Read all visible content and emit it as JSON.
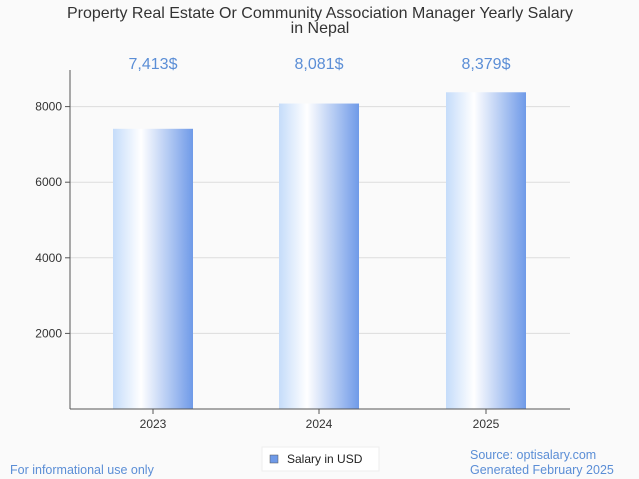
{
  "chart_data": {
    "type": "bar",
    "title_lines": [
      "Property Real Estate Or Community Association Manager Yearly Salary",
      "in Nepal"
    ],
    "categories": [
      "2023",
      "2024",
      "2025"
    ],
    "values": [
      7413,
      8081,
      8379
    ],
    "data_labels": [
      "7,413$",
      "8,081$",
      "8,379$"
    ],
    "series": [
      {
        "name": "Salary in USD",
        "values": [
          7413,
          8081,
          8379
        ]
      }
    ],
    "ylim": [
      0,
      9000
    ],
    "yticks": [
      2000,
      4000,
      6000,
      8000
    ],
    "ytick_labels": [
      "2000",
      "4000",
      "6000",
      "8000"
    ],
    "grid": true,
    "legend_position": "bottom-center"
  },
  "footer": {
    "disclaimer": "For informational use only",
    "source": "Source: optisalary.com",
    "generated": "Generated February 2025"
  },
  "colors": {
    "bar_light": "#ffffff",
    "bar_mid": "#c5dcfa",
    "bar_dark": "#6f9ae8",
    "accent": "#5b8ed6",
    "axis": "#555555",
    "grid": "#dddddd"
  }
}
